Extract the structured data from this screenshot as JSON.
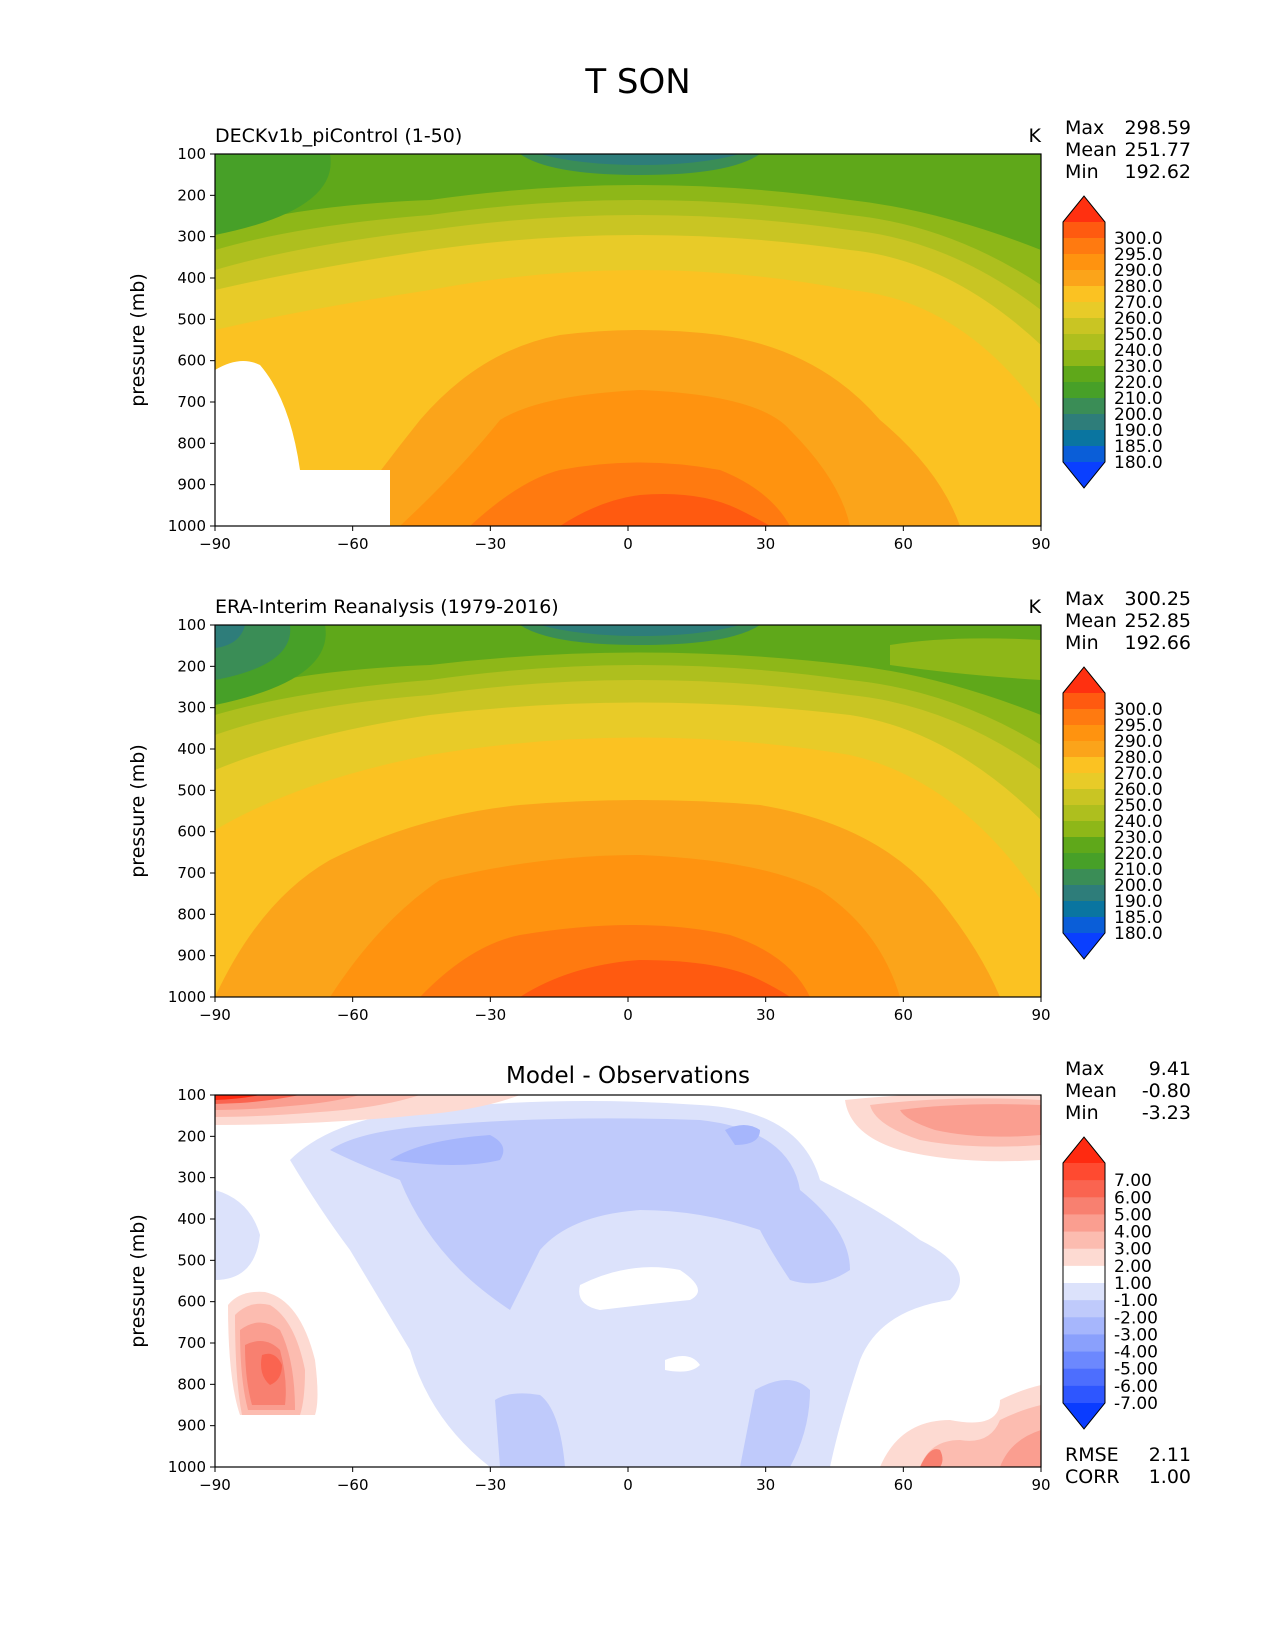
{
  "figure_title": "T SON",
  "chart_data": [
    {
      "type": "heatmap",
      "title": "DECKv1b_piControl (1-50)",
      "units": "K",
      "stats": [
        {
          "label": "Max",
          "value": "298.59"
        },
        {
          "label": "Mean",
          "value": "251.77"
        },
        {
          "label": "Min",
          "value": "192.62"
        }
      ],
      "ylabel": "pressure (mb)",
      "xlabel": "",
      "xlim": [
        -90,
        90
      ],
      "ylim": [
        1000,
        100
      ],
      "x_ticks": [
        "−90",
        "−60",
        "−30",
        "0",
        "30",
        "60",
        "90"
      ],
      "y_ticks": [
        "100",
        "200",
        "300",
        "400",
        "500",
        "600",
        "700",
        "800",
        "900",
        "1000"
      ],
      "colorbar": {
        "labels": [
          "300.0",
          "295.0",
          "290.0",
          "280.0",
          "270.0",
          "260.0",
          "250.0",
          "240.0",
          "230.0",
          "220.0",
          "210.0",
          "200.0",
          "190.0",
          "185.0",
          "180.0"
        ],
        "colors": [
          "#ff3010",
          "#ff5a10",
          "#ff7a10",
          "#ff930f",
          "#fba41a",
          "#fbc222",
          "#e8cb28",
          "#c9c523",
          "#aebf1e",
          "#8eb718",
          "#5fa81a",
          "#47a028",
          "#3a8d56",
          "#2e7d7a",
          "#0a75a0",
          "#0a5ed8",
          "#0a3fff"
        ]
      },
      "grid": false
    },
    {
      "type": "heatmap",
      "title": "ERA-Interim Reanalysis (1979-2016)",
      "units": "K",
      "stats": [
        {
          "label": "Max",
          "value": "300.25"
        },
        {
          "label": "Mean",
          "value": "252.85"
        },
        {
          "label": "Min",
          "value": "192.66"
        }
      ],
      "ylabel": "pressure (mb)",
      "xlabel": "",
      "xlim": [
        -90,
        90
      ],
      "ylim": [
        1000,
        100
      ],
      "x_ticks": [
        "−90",
        "−60",
        "−30",
        "0",
        "30",
        "60",
        "90"
      ],
      "y_ticks": [
        "100",
        "200",
        "300",
        "400",
        "500",
        "600",
        "700",
        "800",
        "900",
        "1000"
      ],
      "colorbar": {
        "labels": [
          "300.0",
          "295.0",
          "290.0",
          "280.0",
          "270.0",
          "260.0",
          "250.0",
          "240.0",
          "230.0",
          "220.0",
          "210.0",
          "200.0",
          "190.0",
          "185.0",
          "180.0"
        ],
        "colors": [
          "#ff3010",
          "#ff5a10",
          "#ff7a10",
          "#ff930f",
          "#fba41a",
          "#fbc222",
          "#e8cb28",
          "#c9c523",
          "#aebf1e",
          "#8eb718",
          "#5fa81a",
          "#47a028",
          "#3a8d56",
          "#2e7d7a",
          "#0a75a0",
          "#0a5ed8",
          "#0a3fff"
        ]
      },
      "grid": false
    },
    {
      "type": "heatmap",
      "title": "Model - Observations",
      "units": "",
      "stats": [
        {
          "label": "Max",
          "value": "9.41"
        },
        {
          "label": "Mean",
          "value": "-0.80"
        },
        {
          "label": "Min",
          "value": "-3.23"
        }
      ],
      "footer_stats": [
        {
          "label": "RMSE",
          "value": "2.11"
        },
        {
          "label": "CORR",
          "value": "1.00"
        }
      ],
      "ylabel": "pressure (mb)",
      "xlabel": "",
      "xlim": [
        -90,
        90
      ],
      "ylim": [
        1000,
        100
      ],
      "x_ticks": [
        "−90",
        "−60",
        "−30",
        "0",
        "30",
        "60",
        "90"
      ],
      "y_ticks": [
        "100",
        "200",
        "300",
        "400",
        "500",
        "600",
        "700",
        "800",
        "900",
        "1000"
      ],
      "colorbar": {
        "labels": [
          "7.00",
          "6.00",
          "5.00",
          "4.00",
          "3.00",
          "2.00",
          "1.00",
          "-1.00",
          "-2.00",
          "-3.00",
          "-4.00",
          "-5.00",
          "-6.00",
          "-7.00"
        ],
        "colors": [
          "#ff2a10",
          "#ff4a30",
          "#fa6450",
          "#f88070",
          "#fa9e90",
          "#fcbcb0",
          "#fddad2",
          "#ffffff",
          "#dce2fb",
          "#bfcafb",
          "#a6b6fc",
          "#8aa0fc",
          "#6c88fe",
          "#4d6efe",
          "#2e56ff",
          "#0a3cff"
        ]
      },
      "grid": false
    }
  ]
}
